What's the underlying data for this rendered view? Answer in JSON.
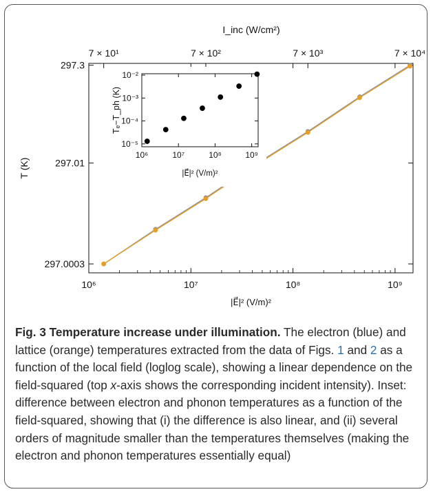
{
  "chart_data": [
    {
      "type": "line",
      "scale": "log-log",
      "x_axis_label": "|E⃗|² (V/m)²",
      "y_axis_label": "T (K)",
      "top_axis_label": "I_inc (W/cm²)",
      "x_ticks": [
        "10⁶",
        "10⁷",
        "10⁸",
        "10⁹"
      ],
      "x_tick_values": [
        1000000,
        10000000,
        100000000,
        1000000000
      ],
      "y_ticks": [
        "297.0003",
        "297.01",
        "297.3"
      ],
      "y_tick_values": [
        297.0003,
        297.01,
        297.3
      ],
      "top_ticks": [
        "7 × 10¹",
        "7 × 10²",
        "7 × 10³",
        "7 × 10⁴"
      ],
      "top_tick_values": [
        70,
        700,
        7000,
        70000
      ],
      "x": [
        1400000,
        4500000,
        14000000,
        45000000,
        140000000,
        450000000,
        1400000000
      ],
      "series": [
        {
          "name": "electron",
          "color": "#8c8fa6",
          "values": [
            297.0003,
            297.001,
            297.003,
            297.01,
            297.03,
            297.1,
            297.3
          ]
        },
        {
          "name": "lattice",
          "color": "#e7a021",
          "values": [
            297.0003,
            297.00097,
            297.0029,
            297.0097,
            297.029,
            297.097,
            297.29
          ]
        }
      ],
      "xlim": [
        1000000,
        1500000000
      ],
      "ylim": [
        297.00022,
        297.32
      ]
    },
    {
      "type": "scatter",
      "scale": "log-log",
      "x_axis_label": "|E⃗|² (V/m)²",
      "y_axis_label": "Tₑ−T_ph (K)",
      "x_ticks": [
        "10⁶",
        "10⁷",
        "10⁸",
        "10⁹"
      ],
      "x_tick_values": [
        1000000,
        10000000,
        100000000,
        1000000000
      ],
      "y_ticks": [
        "10⁻⁵",
        "10⁻⁴",
        "10⁻³",
        "10⁻²"
      ],
      "y_tick_values": [
        1e-05,
        0.0001,
        0.001,
        0.01
      ],
      "x": [
        1400000,
        4500000,
        14000000,
        45000000,
        140000000,
        450000000,
        1400000000
      ],
      "values": [
        1.3e-05,
        4.2e-05,
        0.00013,
        0.00036,
        0.0011,
        0.0033,
        0.011
      ],
      "color": "#000000",
      "xlim": [
        1000000,
        1500000000
      ],
      "ylim": [
        7.5e-06,
        0.0115
      ]
    }
  ],
  "caption": {
    "lead": "Fig. 3 Temperature increase under illumination.",
    "p1": " The electron (blue) and lattice (orange) temperatures extracted from the data of Figs. ",
    "ref1": "1",
    "p2": " and ",
    "ref2": "2",
    "p3": " as a function of the local field (loglog scale), showing a linear dependence on the field-squared (top ",
    "italic_x": "x",
    "p4": "-axis shows the corresponding incident intensity). Inset: difference between electron and phonon temperatures as a function of the field-squared, showing that (i) the difference is also linear, and (ii) several orders of magnitude smaller than the temperatures themselves (making the electron and phonon temperatures essentially equal)"
  }
}
